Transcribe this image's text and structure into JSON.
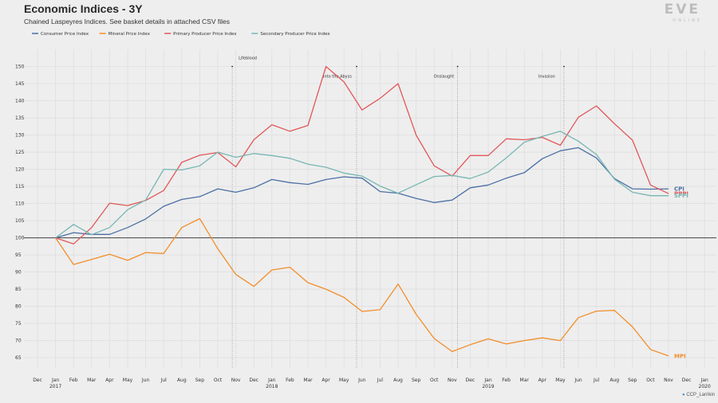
{
  "header": {
    "title": "Economic Indices - 3Y",
    "subtitle": "Chained Laspeyres Indices. See basket details in attached CSV files",
    "logo": "EVE",
    "logo_sub": "ONLINE",
    "credit": "CCP_Larrikin"
  },
  "colors": {
    "background": "#eeeeee",
    "grid": "#d9d9d9",
    "baseline": "#555555",
    "CPI": "#4a6fa5",
    "MPI": "#f28e2b",
    "PPPI": "#e15759",
    "SPPI": "#76b7b2"
  },
  "chart_data": {
    "type": "line",
    "title": "Economic Indices - 3Y",
    "subtitle": "Chained Laspeyres Indices. See basket details in attached CSV files",
    "xlabel": "",
    "ylabel": "",
    "ylim": [
      62,
      155
    ],
    "yticks": [
      65,
      70,
      75,
      80,
      85,
      90,
      95,
      100,
      105,
      110,
      115,
      120,
      125,
      130,
      135,
      140,
      145,
      150
    ],
    "baseline": 100,
    "grid": true,
    "legend_position": "top-left",
    "x_ticks": [
      {
        "month": "Dec",
        "year": ""
      },
      {
        "month": "Jan",
        "year": "2017"
      },
      {
        "month": "Feb",
        "year": ""
      },
      {
        "month": "Mar",
        "year": ""
      },
      {
        "month": "Apr",
        "year": ""
      },
      {
        "month": "May",
        "year": ""
      },
      {
        "month": "Jun",
        "year": ""
      },
      {
        "month": "Jul",
        "year": ""
      },
      {
        "month": "Aug",
        "year": ""
      },
      {
        "month": "Sep",
        "year": ""
      },
      {
        "month": "Oct",
        "year": ""
      },
      {
        "month": "Nov",
        "year": ""
      },
      {
        "month": "Dec",
        "year": ""
      },
      {
        "month": "Jan",
        "year": "2018"
      },
      {
        "month": "Feb",
        "year": ""
      },
      {
        "month": "Mar",
        "year": ""
      },
      {
        "month": "Apr",
        "year": ""
      },
      {
        "month": "May",
        "year": ""
      },
      {
        "month": "Jun",
        "year": ""
      },
      {
        "month": "Jul",
        "year": ""
      },
      {
        "month": "Aug",
        "year": ""
      },
      {
        "month": "Sep",
        "year": ""
      },
      {
        "month": "Oct",
        "year": ""
      },
      {
        "month": "Nov",
        "year": ""
      },
      {
        "month": "Dec",
        "year": ""
      },
      {
        "month": "Jan",
        "year": "2019"
      },
      {
        "month": "Feb",
        "year": ""
      },
      {
        "month": "Mar",
        "year": ""
      },
      {
        "month": "Apr",
        "year": ""
      },
      {
        "month": "May",
        "year": ""
      },
      {
        "month": "Jun",
        "year": ""
      },
      {
        "month": "Jul",
        "year": ""
      },
      {
        "month": "Aug",
        "year": ""
      },
      {
        "month": "Sep",
        "year": ""
      },
      {
        "month": "Oct",
        "year": ""
      },
      {
        "month": "Nov",
        "year": ""
      },
      {
        "month": "Dec",
        "year": ""
      },
      {
        "month": "Jan",
        "year": "2020"
      }
    ],
    "series": [
      {
        "name": "Consumer Price Index",
        "short": "CPI",
        "color": "#4a6fa5",
        "start_index": 1,
        "values": [
          100,
          101.5,
          101.0,
          101.0,
          103.0,
          105.5,
          109.2,
          111.2,
          112.0,
          114.3,
          113.3,
          114.6,
          117.0,
          116.1,
          115.6,
          117.0,
          117.8,
          117.4,
          113.5,
          113.0,
          111.5,
          110.3,
          111.0,
          114.6,
          115.4,
          117.4,
          119.0,
          123.1,
          125.4,
          126.3,
          123.3,
          117.3,
          114.3,
          114.2,
          114.3
        ]
      },
      {
        "name": "Mineral Price Index",
        "short": "MPI",
        "color": "#f28e2b",
        "start_index": 1,
        "values": [
          100,
          92.2,
          93.7,
          95.2,
          93.4,
          95.7,
          95.4,
          103.0,
          105.6,
          96.8,
          89.3,
          85.8,
          90.6,
          91.4,
          86.9,
          85.0,
          82.6,
          78.5,
          79.0,
          86.5,
          77.7,
          70.6,
          66.8,
          68.8,
          70.5,
          69.0,
          70.0,
          70.8,
          70.0,
          76.7,
          78.6,
          78.8,
          74.0,
          67.4,
          65.5
        ]
      },
      {
        "name": "Primary Producer Price Index",
        "short": "PPPI",
        "color": "#e15759",
        "start_index": 1,
        "values": [
          100,
          98.2,
          103.0,
          110.1,
          109.4,
          110.9,
          113.8,
          122.0,
          124.1,
          124.9,
          120.7,
          128.6,
          133.0,
          131.1,
          132.8,
          150.0,
          145.5,
          137.3,
          140.7,
          145.0,
          130.0,
          121.0,
          118.0,
          124.0,
          124.0,
          128.9,
          128.6,
          129.3,
          127.0,
          135.2,
          138.5,
          133.3,
          128.5,
          115.4,
          112.9
        ]
      },
      {
        "name": "Secondary Producer Price Index",
        "short": "SPPI",
        "color": "#76b7b2",
        "start_index": 1,
        "values": [
          100,
          103.9,
          100.9,
          103.0,
          108.2,
          111.0,
          120.0,
          119.8,
          121.0,
          125.0,
          123.5,
          124.6,
          124.0,
          123.2,
          121.5,
          120.6,
          118.9,
          118.0,
          115.1,
          113.0,
          115.5,
          117.9,
          118.2,
          117.3,
          119.2,
          123.3,
          127.9,
          129.6,
          131.1,
          128.2,
          124.3,
          117.1,
          113.3,
          112.3,
          112.3
        ]
      }
    ],
    "annotations": [
      {
        "label": "Lifeblood",
        "x_index": 10.8,
        "y": 150
      },
      {
        "label": "Into the Abyss",
        "x_index": 17.7,
        "y": 150
      },
      {
        "label": "Onslaught",
        "x_index": 23.3,
        "y": 150
      },
      {
        "label": "Invasion",
        "x_index": 29.2,
        "y": 150
      }
    ]
  }
}
